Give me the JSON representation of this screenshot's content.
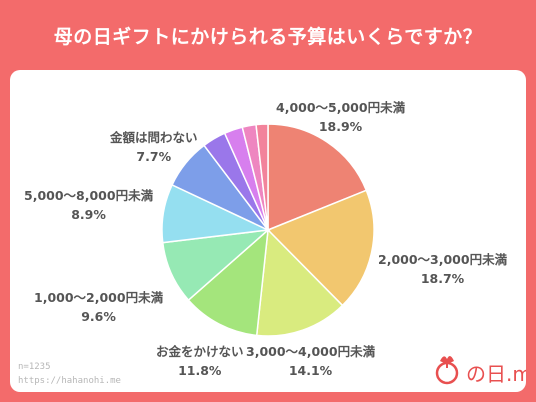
{
  "header": {
    "title": "母の日ギフトにかけられる予算はいくらですか？"
  },
  "chart_data": {
    "type": "pie",
    "title": "母の日ギフトにかけられる予算はいくらですか？",
    "slices": [
      {
        "label": "4,000～5,000円未満",
        "value": 18.9,
        "value_label": "18.9%",
        "color": "#ee8373"
      },
      {
        "label": "2,000～3,000円未満",
        "value": 18.7,
        "value_label": "18.7%",
        "color": "#f2c76f"
      },
      {
        "label": "3,000～4,000円未満",
        "value": 14.1,
        "value_label": "14.1%",
        "color": "#d9eb7f"
      },
      {
        "label": "お金をかけない",
        "value": 11.8,
        "value_label": "11.8%",
        "color": "#a4e57c"
      },
      {
        "label": "1,000～2,000円未満",
        "value": 9.6,
        "value_label": "9.6%",
        "color": "#96e9b4"
      },
      {
        "label": "5,000～8,000円未満",
        "value": 8.9,
        "value_label": "8.9%",
        "color": "#95dff0"
      },
      {
        "label": "金額は問わない",
        "value": 7.7,
        "value_label": "7.7%",
        "color": "#7d9ee9"
      },
      {
        "label": "",
        "value": 3.6,
        "value_label": "",
        "color": "#9a77ea"
      },
      {
        "label": "",
        "value": 2.8,
        "value_label": "",
        "color": "#d77fee"
      },
      {
        "label": "",
        "value": 2.1,
        "value_label": "",
        "color": "#ee86c0"
      },
      {
        "label": "",
        "value": 1.8,
        "value_label": "",
        "color": "#f2839b"
      }
    ]
  },
  "footer": {
    "sample": "n=1235",
    "url": "https://hahanohi.me",
    "logo_text": "の日.me"
  }
}
